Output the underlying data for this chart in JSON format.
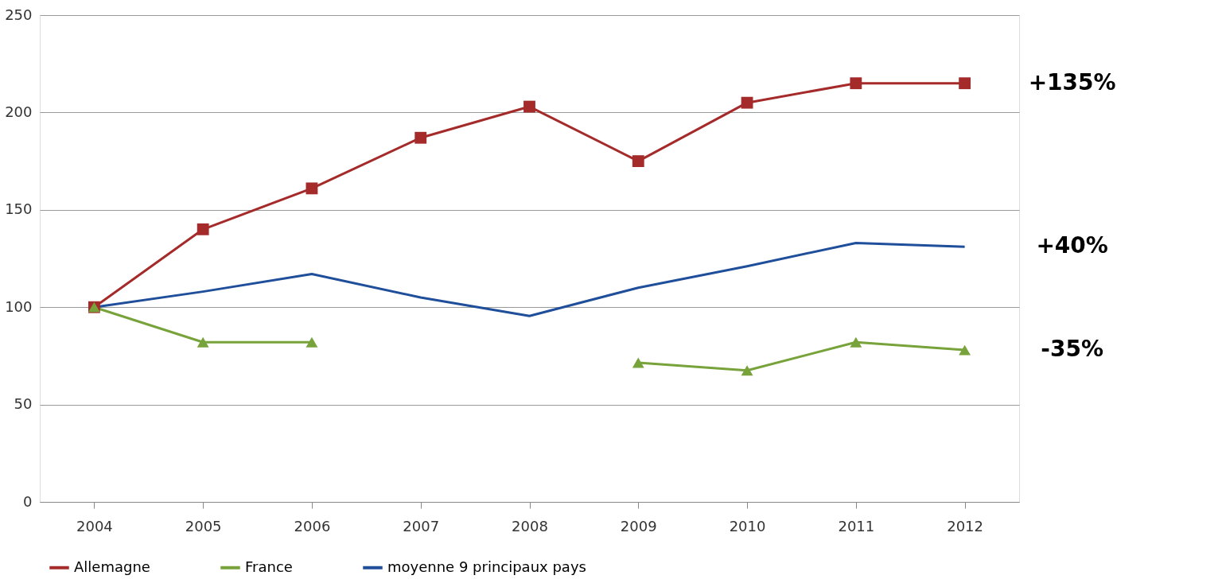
{
  "chart_data": {
    "type": "line",
    "categories": [
      "2004",
      "2005",
      "2006",
      "2007",
      "2008",
      "2009",
      "2010",
      "2011",
      "2012"
    ],
    "series": [
      {
        "name": "Allemagne",
        "color": "#a52a2a",
        "marker": "square",
        "values": [
          100,
          140,
          161,
          187,
          203,
          175,
          205,
          215,
          215
        ]
      },
      {
        "name": "France",
        "color": "#77a33a",
        "marker": "triangle",
        "values": [
          100,
          82,
          82,
          null,
          null,
          71.5,
          67.5,
          82,
          78
        ]
      },
      {
        "name": "moyenne 9 principaux pays",
        "color": "#1f4e9a",
        "marker": "none",
        "values": [
          100,
          108,
          117,
          105,
          95.5,
          110,
          121,
          133,
          131
        ]
      }
    ],
    "ylim": [
      0,
      250
    ],
    "yticks": [
      0,
      50,
      100,
      150,
      200,
      250
    ],
    "grid": "y",
    "legend": "bottom",
    "line_style": "solid",
    "annotations": [
      "+135%",
      "+40%",
      "-35%"
    ]
  }
}
